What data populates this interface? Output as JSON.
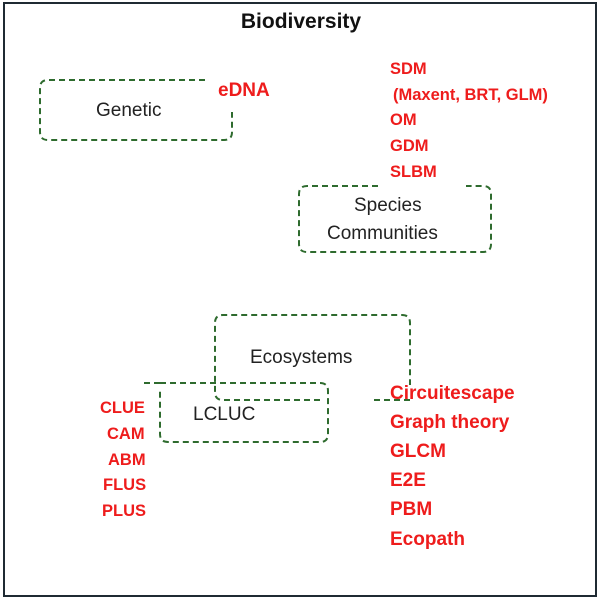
{
  "title": "Biodiversity",
  "levels": {
    "genetic": "Genetic",
    "species": "Species",
    "communities": "Communities",
    "ecosystems": "Ecosystems",
    "lcluc": "LCLUC"
  },
  "genetic_methods": [
    "eDNA"
  ],
  "species_methods": [
    "SDM",
    "(Maxent, BRT, GLM)",
    "OM",
    "GDM",
    "SLBM"
  ],
  "ecosystem_methods": [
    "Circuitescape",
    "Graph theory",
    "GLCM",
    "E2E",
    "PBM",
    "Ecopath"
  ],
  "lcluc_methods": [
    "CLUE",
    "CAM",
    "ABM",
    "FLUS",
    "PLUS"
  ],
  "colors": {
    "method_text": "#ee1c1c",
    "box_dash": "#2e6b2e",
    "frame": "#1f2a33"
  }
}
